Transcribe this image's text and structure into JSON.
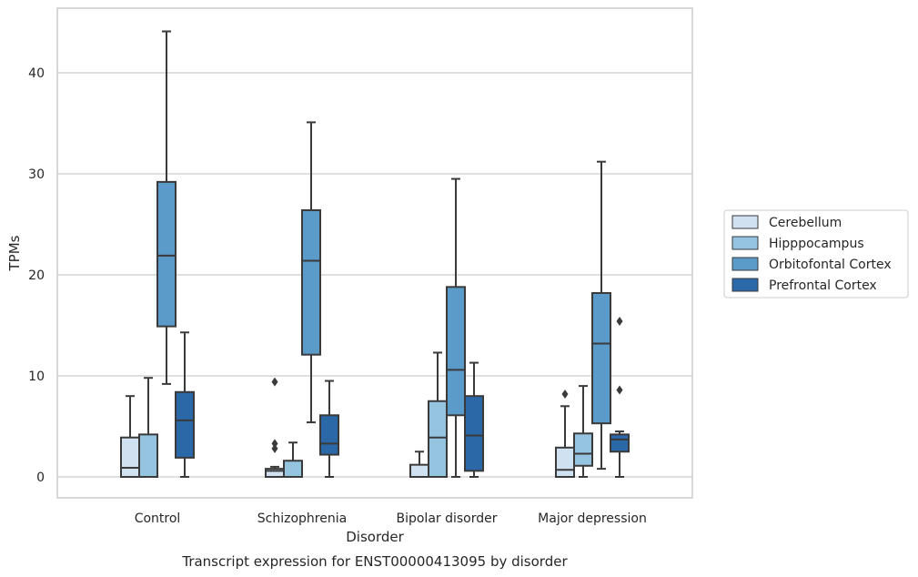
{
  "chart_data": {
    "type": "box",
    "title": "",
    "caption": "Transcript expression for ENST00000413095 by disorder",
    "xlabel": "Disorder",
    "ylabel": "TPMs",
    "ylim": [
      -2,
      46
    ],
    "yticks": [
      0,
      10,
      20,
      30,
      40
    ],
    "grid": "horizontal",
    "legend_position": "right",
    "categories": [
      "Control",
      "Schizophrenia",
      "Bipolar disorder",
      "Major depression"
    ],
    "series": [
      {
        "name": "Cerebellum",
        "color": "#d0e1f2",
        "boxes": [
          {
            "whisker_low": 0,
            "q1": 0,
            "median": 0.9,
            "q3": 3.9,
            "whisker_high": 8.0,
            "outliers": []
          },
          {
            "whisker_low": 0,
            "q1": 0,
            "median": 0.6,
            "q3": 0.8,
            "whisker_high": 1.0,
            "outliers": [
              2.8,
              3.3,
              9.4
            ]
          },
          {
            "whisker_low": 0,
            "q1": 0,
            "median": 0,
            "q3": 1.2,
            "whisker_high": 2.5,
            "outliers": []
          },
          {
            "whisker_low": 0,
            "q1": 0,
            "median": 0.7,
            "q3": 2.9,
            "whisker_high": 7.0,
            "outliers": [
              8.2
            ]
          }
        ]
      },
      {
        "name": "Hipppocampus",
        "color": "#94c4df",
        "boxes": [
          {
            "whisker_low": 0,
            "q1": 0,
            "median": 0,
            "q3": 4.2,
            "whisker_high": 9.8,
            "outliers": []
          },
          {
            "whisker_low": 0,
            "q1": 0,
            "median": 0,
            "q3": 1.6,
            "whisker_high": 3.4,
            "outliers": []
          },
          {
            "whisker_low": 0,
            "q1": 0,
            "median": 3.9,
            "q3": 7.5,
            "whisker_high": 12.3,
            "outliers": []
          },
          {
            "whisker_low": 0,
            "q1": 1.1,
            "median": 2.3,
            "q3": 4.3,
            "whisker_high": 9.0,
            "outliers": []
          }
        ]
      },
      {
        "name": "Orbitofontal Cortex",
        "color": "#5b9bc9",
        "boxes": [
          {
            "whisker_low": 9.2,
            "q1": 14.9,
            "median": 21.9,
            "q3": 29.2,
            "whisker_high": 44.1,
            "outliers": []
          },
          {
            "whisker_low": 5.4,
            "q1": 12.1,
            "median": 21.4,
            "q3": 26.4,
            "whisker_high": 35.1,
            "outliers": []
          },
          {
            "whisker_low": 0,
            "q1": 6.1,
            "median": 10.6,
            "q3": 18.8,
            "whisker_high": 29.5,
            "outliers": []
          },
          {
            "whisker_low": 0.8,
            "q1": 5.3,
            "median": 13.2,
            "q3": 18.2,
            "whisker_high": 31.2,
            "outliers": []
          }
        ]
      },
      {
        "name": "Prefrontal Cortex",
        "color": "#2a68a8",
        "boxes": [
          {
            "whisker_low": 0,
            "q1": 1.9,
            "median": 5.6,
            "q3": 8.4,
            "whisker_high": 14.3,
            "outliers": []
          },
          {
            "whisker_low": 0,
            "q1": 2.2,
            "median": 3.3,
            "q3": 6.1,
            "whisker_high": 9.5,
            "outliers": []
          },
          {
            "whisker_low": 0,
            "q1": 0.6,
            "median": 4.1,
            "q3": 8.0,
            "whisker_high": 11.3,
            "outliers": []
          },
          {
            "whisker_low": 0,
            "q1": 2.5,
            "median": 3.7,
            "q3": 4.2,
            "whisker_high": 4.5,
            "outliers": [
              8.6,
              15.4
            ]
          }
        ]
      }
    ]
  }
}
